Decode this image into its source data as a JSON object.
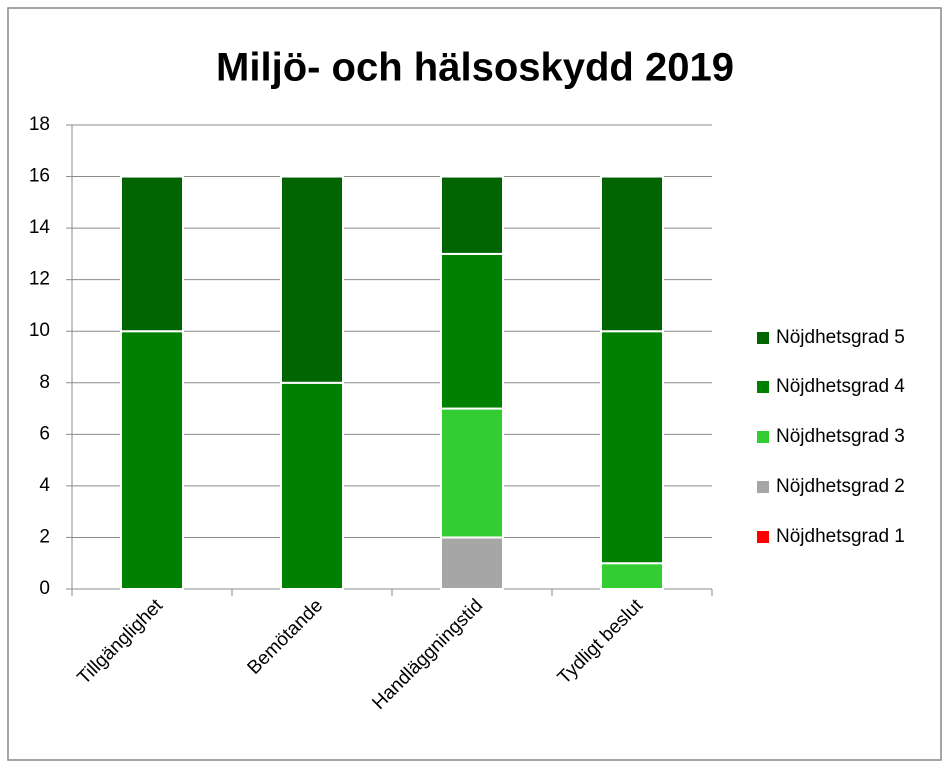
{
  "chart_data": {
    "type": "stacked_bar",
    "title": "Miljö- och hälsoskydd 2019",
    "categories": [
      "Tillgänglighet",
      "Bemötande",
      "Handläggningstid",
      "Tydligt beslut"
    ],
    "series": [
      {
        "name": "Nöjdhetsgrad 1",
        "color": "#ff0000",
        "values": [
          0,
          0,
          0,
          0
        ]
      },
      {
        "name": "Nöjdhetsgrad 2",
        "color": "#a6a6a6",
        "values": [
          0,
          0,
          2,
          0
        ]
      },
      {
        "name": "Nöjdhetsgrad 3",
        "color": "#33cc33",
        "values": [
          0,
          0,
          5,
          1
        ]
      },
      {
        "name": "Nöjdhetsgrad 4",
        "color": "#008000",
        "values": [
          10,
          8,
          6,
          9
        ]
      },
      {
        "name": "Nöjdhetsgrad 5",
        "color": "#006400",
        "values": [
          6,
          8,
          3,
          6
        ]
      }
    ],
    "ylim": [
      0,
      18
    ],
    "yticks": [
      0,
      2,
      4,
      6,
      8,
      10,
      12,
      14,
      16,
      18
    ],
    "grid": true,
    "legend": "right"
  }
}
